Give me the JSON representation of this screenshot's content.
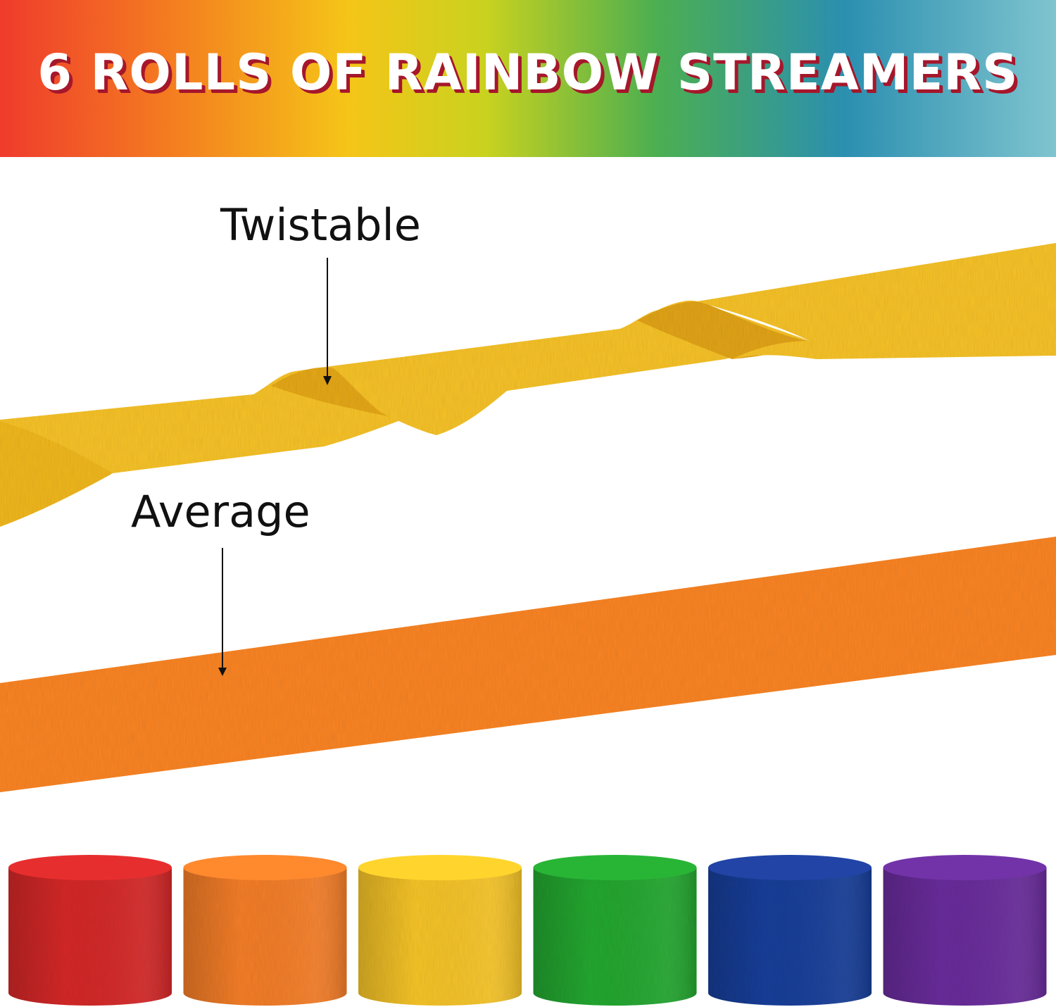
{
  "banner": {
    "title": "6 ROLLS OF RAINBOW STREAMERS",
    "gradient": [
      "#ef3b2c",
      "#f47c20",
      "#f5c518",
      "#c9d21f",
      "#4caf50",
      "#2b8fb0",
      "#7fc4cf"
    ],
    "shadow_color": "#a5172b"
  },
  "labels": {
    "twistable": "Twistable",
    "average": "Average"
  },
  "streamers": {
    "twisted_color": "#f7c32c",
    "flat_color": "#fb8527"
  },
  "rolls": [
    {
      "color": "red",
      "hex": "#d62b2b"
    },
    {
      "color": "orange",
      "hex": "#f57f2a"
    },
    {
      "color": "yellow",
      "hex": "#f7c52a"
    },
    {
      "color": "green",
      "hex": "#25a832"
    },
    {
      "color": "blue",
      "hex": "#1f3f9a"
    },
    {
      "color": "purple",
      "hex": "#6a2f9c"
    }
  ]
}
